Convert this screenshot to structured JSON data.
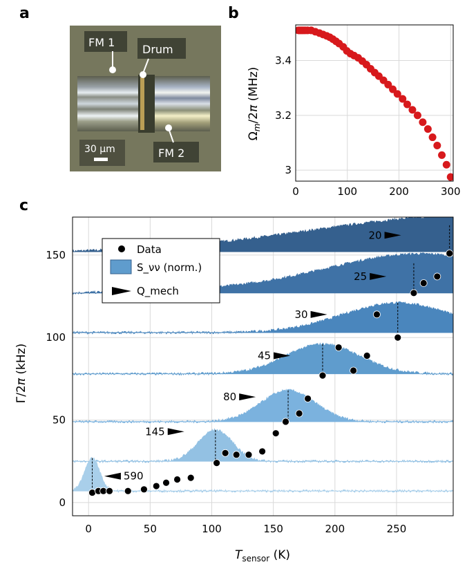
{
  "panel_labels": {
    "a": "a",
    "b": "b",
    "c": "c"
  },
  "micrograph": {
    "labels": {
      "fm1": "FM 1",
      "drum": "Drum",
      "fm2": "FM 2"
    },
    "scale_bar": "30 μm",
    "colors": {
      "background": "#6f7158",
      "gap": "#3a3d2e",
      "shim": "#c9a85a"
    }
  },
  "chart_data": [
    {
      "type": "scatter",
      "panel": "b",
      "xlabel": "",
      "ylabel": "Ω_m / 2π (MHz)",
      "xlim": [
        0,
        305
      ],
      "ylim": [
        2.96,
        3.53
      ],
      "xticks": [
        0,
        100,
        200,
        300
      ],
      "yticks": [
        3.0,
        3.2,
        3.4
      ],
      "ytick_labels": [
        "3",
        "3.2",
        "3.4"
      ],
      "grid": true,
      "marker_color": "#d7191c",
      "x": [
        5,
        8,
        11,
        14,
        18,
        23,
        30,
        38,
        46,
        53,
        60,
        66,
        72,
        78,
        84,
        92,
        99,
        106,
        113,
        121,
        129,
        137,
        145,
        153,
        161,
        170,
        179,
        188,
        197,
        207,
        216,
        226,
        236,
        246,
        256,
        265,
        274,
        283,
        292,
        300
      ],
      "y": [
        3.51,
        3.51,
        3.51,
        3.51,
        3.51,
        3.51,
        3.51,
        3.505,
        3.5,
        3.495,
        3.49,
        3.485,
        3.478,
        3.47,
        3.462,
        3.45,
        3.435,
        3.425,
        3.418,
        3.41,
        3.398,
        3.385,
        3.37,
        3.356,
        3.343,
        3.328,
        3.312,
        3.295,
        3.278,
        3.26,
        3.24,
        3.22,
        3.2,
        3.175,
        3.15,
        3.12,
        3.09,
        3.055,
        3.02,
        2.975
      ]
    },
    {
      "type": "scatter",
      "panel": "c",
      "xlabel": "T_sensor (K)",
      "ylabel": "Γ / 2π (kHz)",
      "xlim": [
        -13,
        296
      ],
      "ylim": [
        -8,
        173
      ],
      "xticks": [
        0,
        50,
        100,
        150,
        200,
        250
      ],
      "yticks": [
        0,
        50,
        100,
        150
      ],
      "grid": true,
      "legend": {
        "placement": "top-left",
        "entries": [
          {
            "key": "data",
            "label": "Data"
          },
          {
            "key": "spectrum",
            "label": "S_νν (norm.)"
          },
          {
            "key": "qmech",
            "label": "Q_mech"
          }
        ]
      },
      "data_points": {
        "x": [
          3,
          8,
          12,
          17,
          32,
          45,
          55,
          63,
          72,
          83,
          104,
          111,
          120,
          130,
          141,
          152,
          160,
          171,
          178,
          190,
          203,
          215,
          226,
          234,
          251,
          264,
          272,
          283,
          293
        ],
        "y": [
          6,
          7,
          7,
          7,
          7,
          8,
          10,
          12,
          14,
          15,
          24,
          30,
          29,
          29,
          31,
          42,
          49,
          54,
          63,
          77,
          94,
          80,
          89,
          114,
          100,
          127,
          133,
          137,
          151
        ]
      },
      "spectra": [
        {
          "q": "590",
          "baseline": 7,
          "height": 20,
          "peak_x": 3,
          "color": "#a9cfea"
        },
        {
          "q": "145",
          "baseline": 25,
          "height": 19,
          "peak_x": 103,
          "color": "#93c1e3"
        },
        {
          "q": "80",
          "baseline": 49,
          "height": 19,
          "peak_x": 162,
          "color": "#7bb2de"
        },
        {
          "q": "45",
          "baseline": 78,
          "height": 18,
          "peak_x": 190,
          "color": "#5f9ccd"
        },
        {
          "q": "30",
          "baseline": 103,
          "height": 18,
          "peak_x": 251,
          "color": "#4a86bd"
        },
        {
          "q": "25",
          "baseline": 127,
          "height": 18,
          "peak_x": 264,
          "color": "#3f72a6"
        },
        {
          "q": "20",
          "baseline": 152,
          "height": 16,
          "peak_x": 293,
          "color": "#35608e"
        }
      ]
    }
  ]
}
